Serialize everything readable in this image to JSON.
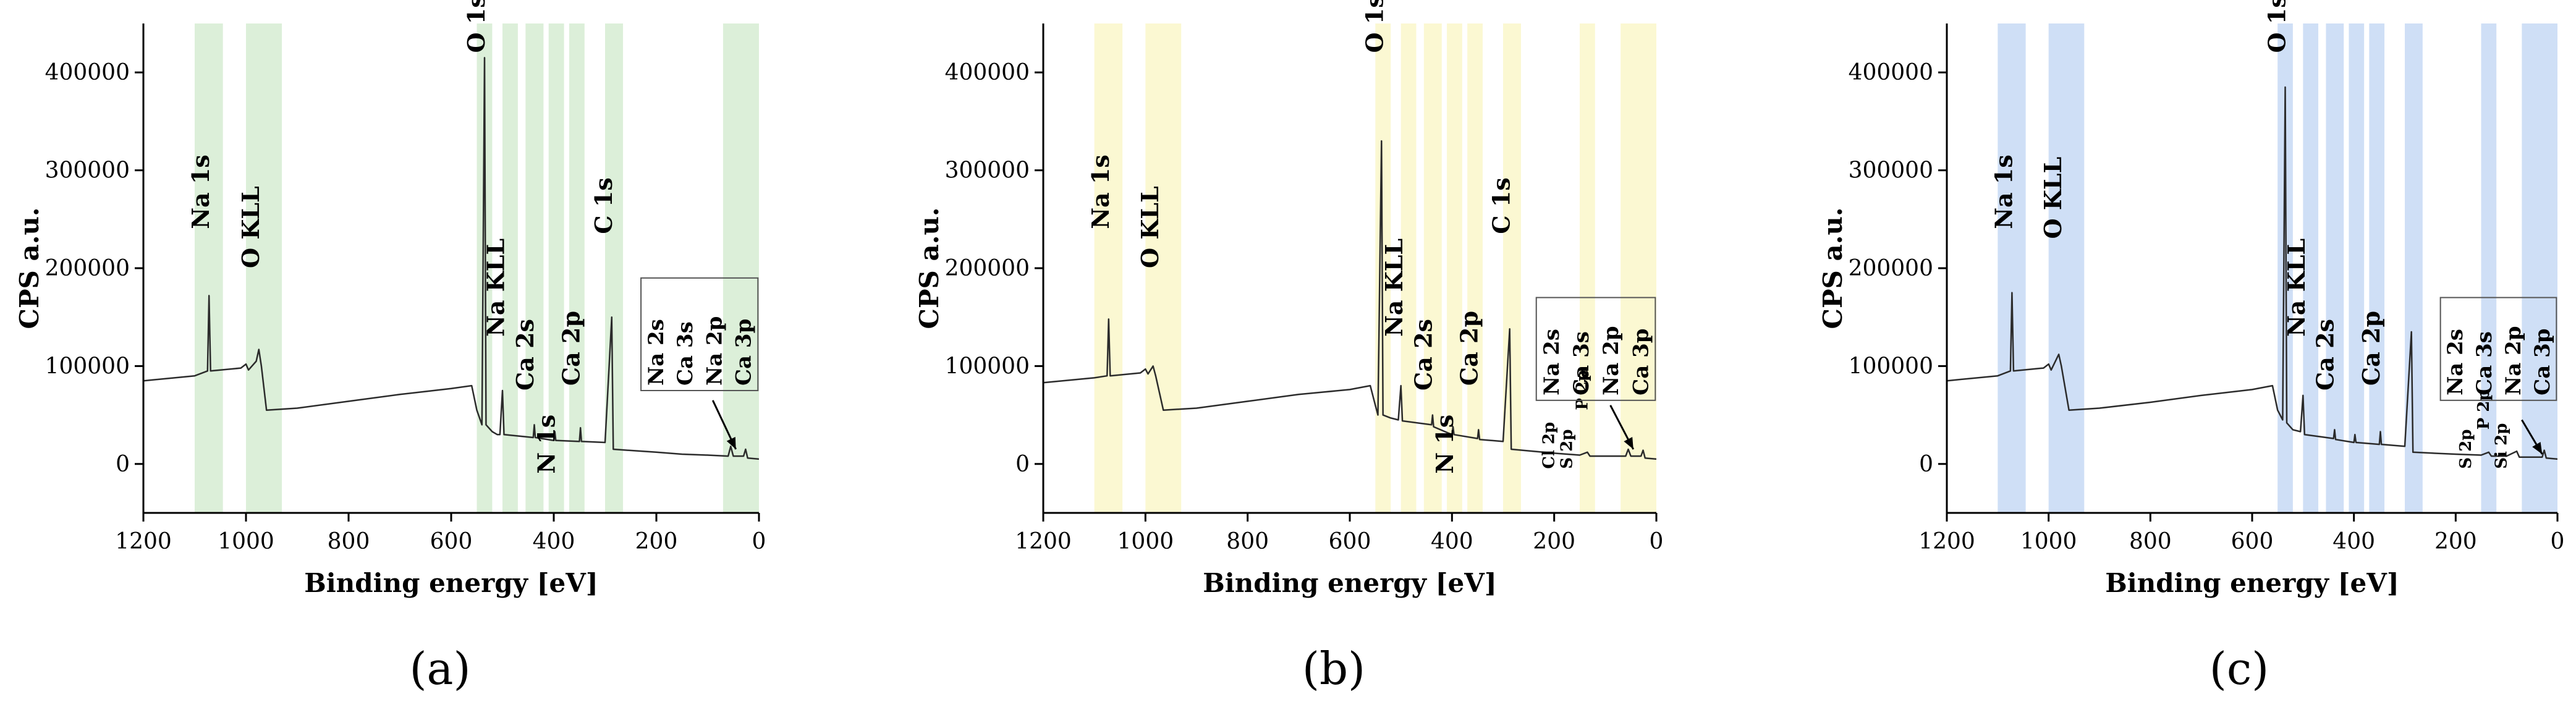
{
  "colors": {
    "band_a": "#dcefd9",
    "band_b": "#fbf8d2",
    "band_c": "#cfdff6",
    "line": "#2b2b2b",
    "axis": "#000000"
  },
  "chart_data": [
    {
      "type": "line",
      "panel_label": "(a)",
      "xlabel": "Binding energy [eV]",
      "ylabel": "CPS a.u.",
      "xlim": [
        1200,
        0
      ],
      "ylim": [
        -50000,
        450000
      ],
      "x_ticks": [
        1200,
        1000,
        800,
        600,
        400,
        200,
        0
      ],
      "y_ticks": [
        0,
        100000,
        200000,
        300000,
        400000
      ],
      "band_color_key": "band_a",
      "bands": [
        [
          1100,
          1045
        ],
        [
          1000,
          930
        ],
        [
          550,
          520
        ],
        [
          500,
          470
        ],
        [
          455,
          420
        ],
        [
          410,
          380
        ],
        [
          370,
          340
        ],
        [
          300,
          265
        ],
        [
          70,
          0
        ]
      ],
      "spectrum": [
        [
          1200,
          85000
        ],
        [
          1100,
          90000
        ],
        [
          1075,
          95000
        ],
        [
          1072,
          172000
        ],
        [
          1069,
          95000
        ],
        [
          1010,
          98000
        ],
        [
          1000,
          102000
        ],
        [
          995,
          96000
        ],
        [
          980,
          105000
        ],
        [
          975,
          117000
        ],
        [
          970,
          100000
        ],
        [
          960,
          55000
        ],
        [
          900,
          57000
        ],
        [
          800,
          64000
        ],
        [
          700,
          71000
        ],
        [
          600,
          77000
        ],
        [
          560,
          80000
        ],
        [
          550,
          55000
        ],
        [
          540,
          40000
        ],
        [
          535,
          415000
        ],
        [
          532,
          40000
        ],
        [
          520,
          33000
        ],
        [
          510,
          30000
        ],
        [
          505,
          30000
        ],
        [
          500,
          75000
        ],
        [
          497,
          30000
        ],
        [
          440,
          27000
        ],
        [
          438,
          40000
        ],
        [
          436,
          27000
        ],
        [
          400,
          24000
        ],
        [
          398,
          33000
        ],
        [
          396,
          24000
        ],
        [
          350,
          23000
        ],
        [
          348,
          37000
        ],
        [
          346,
          23000
        ],
        [
          300,
          22000
        ],
        [
          287,
          150000
        ],
        [
          284,
          15000
        ],
        [
          200,
          12000
        ],
        [
          150,
          10000
        ],
        [
          100,
          9000
        ],
        [
          60,
          8000
        ],
        [
          55,
          18000
        ],
        [
          50,
          8000
        ],
        [
          30,
          8000
        ],
        [
          26,
          15000
        ],
        [
          22,
          6000
        ],
        [
          0,
          5000
        ]
      ],
      "peak_labels": [
        {
          "text": "Na 1s",
          "x": 1072,
          "y": 240000
        },
        {
          "text": "O KLL",
          "x": 975,
          "y": 200000
        },
        {
          "text": "O 1s",
          "x": 535,
          "y": 420000
        },
        {
          "text": "Na KLL",
          "x": 497,
          "y": 130000
        },
        {
          "text": "Ca 2s",
          "x": 440,
          "y": 75000
        },
        {
          "text": "N 1s",
          "x": 398,
          "y": -10000
        },
        {
          "text": "Ca 2p",
          "x": 350,
          "y": 80000
        },
        {
          "text": "C 1s",
          "x": 287,
          "y": 235000
        }
      ],
      "box_labels": [
        "Na 2s",
        "Ca 3s",
        "Na 2p",
        "Ca 3p"
      ],
      "box_position": {
        "x0": 230,
        "x1": 2,
        "y_top": 190000,
        "y_bottom": 75000
      },
      "arrow": {
        "from": [
          90,
          65000
        ],
        "to": [
          45,
          15000
        ]
      }
    },
    {
      "type": "line",
      "panel_label": "(b)",
      "xlabel": "Binding energy [eV]",
      "ylabel": "CPS a.u.",
      "xlim": [
        1200,
        0
      ],
      "ylim": [
        -50000,
        450000
      ],
      "x_ticks": [
        1200,
        1000,
        800,
        600,
        400,
        200,
        0
      ],
      "y_ticks": [
        0,
        100000,
        200000,
        300000,
        400000
      ],
      "band_color_key": "band_b",
      "bands": [
        [
          1100,
          1045
        ],
        [
          1000,
          930
        ],
        [
          550,
          520
        ],
        [
          500,
          470
        ],
        [
          455,
          420
        ],
        [
          410,
          380
        ],
        [
          370,
          340
        ],
        [
          300,
          265
        ],
        [
          150,
          120
        ],
        [
          70,
          0
        ]
      ],
      "spectrum": [
        [
          1200,
          83000
        ],
        [
          1100,
          88000
        ],
        [
          1075,
          90000
        ],
        [
          1072,
          148000
        ],
        [
          1069,
          90000
        ],
        [
          1010,
          93000
        ],
        [
          1000,
          97000
        ],
        [
          995,
          92000
        ],
        [
          985,
          100000
        ],
        [
          980,
          90000
        ],
        [
          965,
          55000
        ],
        [
          900,
          57000
        ],
        [
          800,
          64000
        ],
        [
          700,
          71000
        ],
        [
          600,
          76000
        ],
        [
          560,
          80000
        ],
        [
          550,
          60000
        ],
        [
          545,
          50000
        ],
        [
          538,
          330000
        ],
        [
          535,
          50000
        ],
        [
          520,
          47000
        ],
        [
          505,
          45000
        ],
        [
          500,
          80000
        ],
        [
          497,
          44000
        ],
        [
          440,
          40000
        ],
        [
          438,
          50000
        ],
        [
          436,
          38000
        ],
        [
          400,
          30000
        ],
        [
          398,
          38000
        ],
        [
          396,
          30000
        ],
        [
          350,
          26000
        ],
        [
          348,
          35000
        ],
        [
          346,
          25000
        ],
        [
          300,
          23000
        ],
        [
          287,
          138000
        ],
        [
          284,
          15000
        ],
        [
          200,
          11000
        ],
        [
          150,
          9000
        ],
        [
          135,
          12000
        ],
        [
          130,
          8000
        ],
        [
          60,
          8000
        ],
        [
          55,
          15000
        ],
        [
          50,
          8000
        ],
        [
          30,
          8000
        ],
        [
          26,
          14000
        ],
        [
          22,
          6000
        ],
        [
          0,
          5000
        ]
      ],
      "peak_labels": [
        {
          "text": "Na 1s",
          "x": 1072,
          "y": 240000
        },
        {
          "text": "O KLL",
          "x": 975,
          "y": 200000
        },
        {
          "text": "O 1s",
          "x": 535,
          "y": 420000
        },
        {
          "text": "Na KLL",
          "x": 497,
          "y": 130000
        },
        {
          "text": "Ca 2s",
          "x": 440,
          "y": 75000
        },
        {
          "text": "N 1s",
          "x": 398,
          "y": -10000
        },
        {
          "text": "Ca 2p",
          "x": 350,
          "y": 80000
        },
        {
          "text": "C 1s",
          "x": 287,
          "y": 235000
        },
        {
          "text": "Cl 2p",
          "x": 200,
          "y": -5000
        },
        {
          "text": "S 2p",
          "x": 165,
          "y": -5000
        },
        {
          "text": "P 2p",
          "x": 135,
          "y": 55000
        }
      ],
      "box_labels": [
        "Na 2s",
        "Ca 3s",
        "Na 2p",
        "Ca 3p"
      ],
      "box_position": {
        "x0": 235,
        "x1": 2,
        "y_top": 170000,
        "y_bottom": 65000
      },
      "arrow": {
        "from": [
          90,
          60000
        ],
        "to": [
          45,
          15000
        ]
      }
    },
    {
      "type": "line",
      "panel_label": "(c)",
      "xlabel": "Binding energy [eV]",
      "ylabel": "CPS a.u.",
      "xlim": [
        1200,
        0
      ],
      "ylim": [
        -50000,
        450000
      ],
      "x_ticks": [
        1200,
        1000,
        800,
        600,
        400,
        200,
        0
      ],
      "y_ticks": [
        0,
        100000,
        200000,
        300000,
        400000
      ],
      "band_color_key": "band_c",
      "bands": [
        [
          1100,
          1045
        ],
        [
          1000,
          930
        ],
        [
          550,
          520
        ],
        [
          500,
          470
        ],
        [
          455,
          420
        ],
        [
          410,
          380
        ],
        [
          370,
          340
        ],
        [
          300,
          265
        ],
        [
          150,
          120
        ],
        [
          70,
          0
        ]
      ],
      "spectrum": [
        [
          1200,
          85000
        ],
        [
          1100,
          90000
        ],
        [
          1075,
          95000
        ],
        [
          1072,
          175000
        ],
        [
          1069,
          95000
        ],
        [
          1010,
          98000
        ],
        [
          1000,
          102000
        ],
        [
          995,
          96000
        ],
        [
          980,
          112000
        ],
        [
          975,
          100000
        ],
        [
          960,
          55000
        ],
        [
          900,
          57000
        ],
        [
          800,
          63000
        ],
        [
          700,
          70000
        ],
        [
          600,
          76000
        ],
        [
          560,
          80000
        ],
        [
          550,
          55000
        ],
        [
          540,
          45000
        ],
        [
          535,
          385000
        ],
        [
          532,
          42000
        ],
        [
          520,
          35000
        ],
        [
          505,
          33000
        ],
        [
          500,
          70000
        ],
        [
          497,
          30000
        ],
        [
          440,
          26000
        ],
        [
          438,
          35000
        ],
        [
          436,
          25000
        ],
        [
          400,
          22000
        ],
        [
          398,
          30000
        ],
        [
          396,
          22000
        ],
        [
          350,
          20000
        ],
        [
          348,
          33000
        ],
        [
          346,
          20000
        ],
        [
          300,
          18000
        ],
        [
          287,
          135000
        ],
        [
          284,
          12000
        ],
        [
          200,
          10000
        ],
        [
          150,
          9000
        ],
        [
          135,
          12000
        ],
        [
          130,
          8000
        ],
        [
          100,
          8000
        ],
        [
          80,
          13000
        ],
        [
          75,
          7000
        ],
        [
          30,
          7000
        ],
        [
          26,
          14000
        ],
        [
          22,
          6000
        ],
        [
          0,
          5000
        ]
      ],
      "peak_labels": [
        {
          "text": "Na 1s",
          "x": 1072,
          "y": 240000
        },
        {
          "text": "O KLL",
          "x": 975,
          "y": 230000
        },
        {
          "text": "O 1s",
          "x": 535,
          "y": 420000
        },
        {
          "text": "Na KLL",
          "x": 497,
          "y": 130000
        },
        {
          "text": "Ca 2s",
          "x": 440,
          "y": 75000
        },
        {
          "text": "Ca 2p",
          "x": 350,
          "y": 80000
        },
        {
          "text": "S 2p",
          "x": 170,
          "y": -5000
        },
        {
          "text": "P 2p",
          "x": 135,
          "y": 35000
        },
        {
          "text": "Si 2p",
          "x": 100,
          "y": -5000
        }
      ],
      "box_labels": [
        "Na 2s",
        "Ca 3s",
        "Na 2p",
        "Ca 3p"
      ],
      "box_position": {
        "x0": 230,
        "x1": 2,
        "y_top": 170000,
        "y_bottom": 65000
      },
      "arrow": {
        "from": [
          70,
          45000
        ],
        "to": [
          30,
          10000
        ]
      }
    }
  ]
}
